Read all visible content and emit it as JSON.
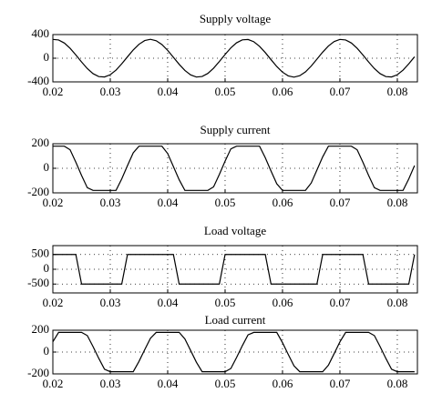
{
  "chart_data": [
    {
      "type": "line",
      "title": "Supply voltage",
      "xlim": [
        0.02,
        0.0835
      ],
      "ylim": [
        -400,
        400
      ],
      "xticks": [
        0.02,
        0.03,
        0.04,
        0.05,
        0.06,
        0.07,
        0.08
      ],
      "yticks": [
        400,
        0,
        -400
      ],
      "grid": true,
      "x": [
        0.02,
        0.021,
        0.022,
        0.023,
        0.024,
        0.025,
        0.026,
        0.027,
        0.028,
        0.029,
        0.03,
        0.031,
        0.032,
        0.033,
        0.034,
        0.035,
        0.036,
        0.037,
        0.038,
        0.039,
        0.04,
        0.041,
        0.042,
        0.043,
        0.044,
        0.045,
        0.046,
        0.047,
        0.048,
        0.049,
        0.05,
        0.051,
        0.052,
        0.053,
        0.054,
        0.055,
        0.056,
        0.057,
        0.058,
        0.059,
        0.06,
        0.061,
        0.062,
        0.063,
        0.064,
        0.065,
        0.066,
        0.067,
        0.068,
        0.069,
        0.07,
        0.071,
        0.072,
        0.073,
        0.074,
        0.075,
        0.076,
        0.077,
        0.078,
        0.079,
        0.08,
        0.081,
        0.082,
        0.083
      ],
      "series": [
        {
          "color": "#000000",
          "values": [
            318,
            309,
            257,
            168,
            56,
            -64,
            -175,
            -261,
            -311,
            -317,
            -279,
            -201,
            -95,
            24,
            140,
            236,
            299,
            320,
            296,
            231,
            133,
            16,
            -103,
            -207,
            -282,
            -318,
            -309,
            -257,
            -168,
            -56,
            64,
            175,
            261,
            311,
            317,
            279,
            201,
            95,
            -24,
            -140,
            -236,
            -299,
            -320,
            -296,
            -231,
            -133,
            -16,
            103,
            207,
            282,
            318,
            309,
            257,
            168,
            56,
            -64,
            -175,
            -261,
            -311,
            -317,
            -279,
            -201,
            -95,
            24
          ]
        }
      ]
    },
    {
      "type": "line",
      "title": "Supply current",
      "xlim": [
        0.02,
        0.0835
      ],
      "ylim": [
        -200,
        200
      ],
      "xticks": [
        0.02,
        0.03,
        0.04,
        0.05,
        0.06,
        0.07,
        0.08
      ],
      "yticks": [
        200,
        0,
        -200
      ],
      "grid": true,
      "x": [
        0.02,
        0.021,
        0.022,
        0.023,
        0.024,
        0.025,
        0.026,
        0.027,
        0.028,
        0.029,
        0.03,
        0.031,
        0.032,
        0.033,
        0.034,
        0.035,
        0.036,
        0.037,
        0.038,
        0.039,
        0.04,
        0.041,
        0.042,
        0.043,
        0.044,
        0.045,
        0.046,
        0.047,
        0.048,
        0.049,
        0.05,
        0.051,
        0.052,
        0.053,
        0.054,
        0.055,
        0.056,
        0.057,
        0.058,
        0.059,
        0.06,
        0.061,
        0.062,
        0.063,
        0.064,
        0.065,
        0.066,
        0.067,
        0.068,
        0.069,
        0.07,
        0.071,
        0.072,
        0.073,
        0.074,
        0.075,
        0.076,
        0.077,
        0.078,
        0.079,
        0.08,
        0.081,
        0.082,
        0.083
      ],
      "series": [
        {
          "color": "#000000",
          "values": [
            180,
            180,
            180,
            151,
            50,
            -58,
            -158,
            -180,
            -180,
            -180,
            -180,
            -180,
            -86,
            22,
            126,
            180,
            180,
            180,
            180,
            180,
            120,
            14,
            -93,
            -180,
            -180,
            -180,
            -180,
            -180,
            -151,
            -50,
            58,
            158,
            180,
            180,
            180,
            180,
            180,
            86,
            -22,
            -126,
            -180,
            -180,
            -180,
            -180,
            -180,
            -120,
            -14,
            93,
            180,
            180,
            180,
            180,
            180,
            151,
            50,
            -58,
            -158,
            -180,
            -180,
            -180,
            -180,
            -180,
            -86,
            22
          ]
        }
      ]
    },
    {
      "type": "line",
      "title": "Load voltage",
      "xlim": [
        0.02,
        0.0835
      ],
      "ylim": [
        -800,
        800
      ],
      "xticks": [
        0.02,
        0.03,
        0.04,
        0.05,
        0.06,
        0.07,
        0.08
      ],
      "yticks": [
        500,
        0,
        -500
      ],
      "grid": true,
      "x": [
        0.02,
        0.021,
        0.022,
        0.023,
        0.024,
        0.025,
        0.026,
        0.027,
        0.028,
        0.029,
        0.03,
        0.031,
        0.032,
        0.033,
        0.034,
        0.035,
        0.036,
        0.037,
        0.038,
        0.039,
        0.04,
        0.041,
        0.042,
        0.043,
        0.044,
        0.045,
        0.046,
        0.047,
        0.048,
        0.049,
        0.05,
        0.051,
        0.052,
        0.053,
        0.054,
        0.055,
        0.056,
        0.057,
        0.058,
        0.059,
        0.06,
        0.061,
        0.062,
        0.063,
        0.064,
        0.065,
        0.066,
        0.067,
        0.068,
        0.069,
        0.07,
        0.071,
        0.072,
        0.073,
        0.074,
        0.075,
        0.076,
        0.077,
        0.078,
        0.079,
        0.08,
        0.081,
        0.082,
        0.083
      ],
      "series": [
        {
          "color": "#000000",
          "values": [
            500,
            500,
            500,
            500,
            500,
            -500,
            -500,
            -500,
            -500,
            -500,
            -500,
            -500,
            -500,
            500,
            500,
            500,
            500,
            500,
            500,
            500,
            500,
            500,
            -500,
            -500,
            -500,
            -500,
            -500,
            -500,
            -500,
            -500,
            500,
            500,
            500,
            500,
            500,
            500,
            500,
            500,
            -500,
            -500,
            -500,
            -500,
            -500,
            -500,
            -500,
            -500,
            -500,
            500,
            500,
            500,
            500,
            500,
            500,
            500,
            500,
            -500,
            -500,
            -500,
            -500,
            -500,
            -500,
            -500,
            -500,
            500
          ]
        }
      ]
    },
    {
      "type": "line",
      "title": "Load current",
      "xlim": [
        0.02,
        0.0835
      ],
      "ylim": [
        -200,
        200
      ],
      "xticks": [
        0.02,
        0.03,
        0.04,
        0.05,
        0.06,
        0.07,
        0.08
      ],
      "yticks": [
        200,
        0,
        -200
      ],
      "grid": true,
      "x": [
        0.02,
        0.021,
        0.022,
        0.023,
        0.024,
        0.025,
        0.026,
        0.027,
        0.028,
        0.029,
        0.03,
        0.031,
        0.032,
        0.033,
        0.034,
        0.035,
        0.036,
        0.037,
        0.038,
        0.039,
        0.04,
        0.041,
        0.042,
        0.043,
        0.044,
        0.045,
        0.046,
        0.047,
        0.048,
        0.049,
        0.05,
        0.051,
        0.052,
        0.053,
        0.054,
        0.055,
        0.056,
        0.057,
        0.058,
        0.059,
        0.06,
        0.061,
        0.062,
        0.063,
        0.064,
        0.065,
        0.066,
        0.067,
        0.068,
        0.069,
        0.07,
        0.071,
        0.072,
        0.073,
        0.074,
        0.075,
        0.076,
        0.077,
        0.078,
        0.079,
        0.08,
        0.081,
        0.082,
        0.083
      ],
      "series": [
        {
          "color": "#000000",
          "values": [
            94,
            180,
            180,
            180,
            180,
            180,
            151,
            50,
            -58,
            -158,
            -180,
            -180,
            -180,
            -180,
            -180,
            -86,
            22,
            126,
            180,
            180,
            180,
            180,
            180,
            120,
            14,
            -93,
            -180,
            -180,
            -180,
            -180,
            -180,
            -151,
            -50,
            58,
            158,
            180,
            180,
            180,
            180,
            180,
            86,
            -22,
            -126,
            -180,
            -180,
            -180,
            -180,
            -180,
            -120,
            -14,
            93,
            180,
            180,
            180,
            180,
            180,
            151,
            50,
            -58,
            -158,
            -180,
            -180,
            -180,
            -180
          ]
        }
      ]
    }
  ]
}
